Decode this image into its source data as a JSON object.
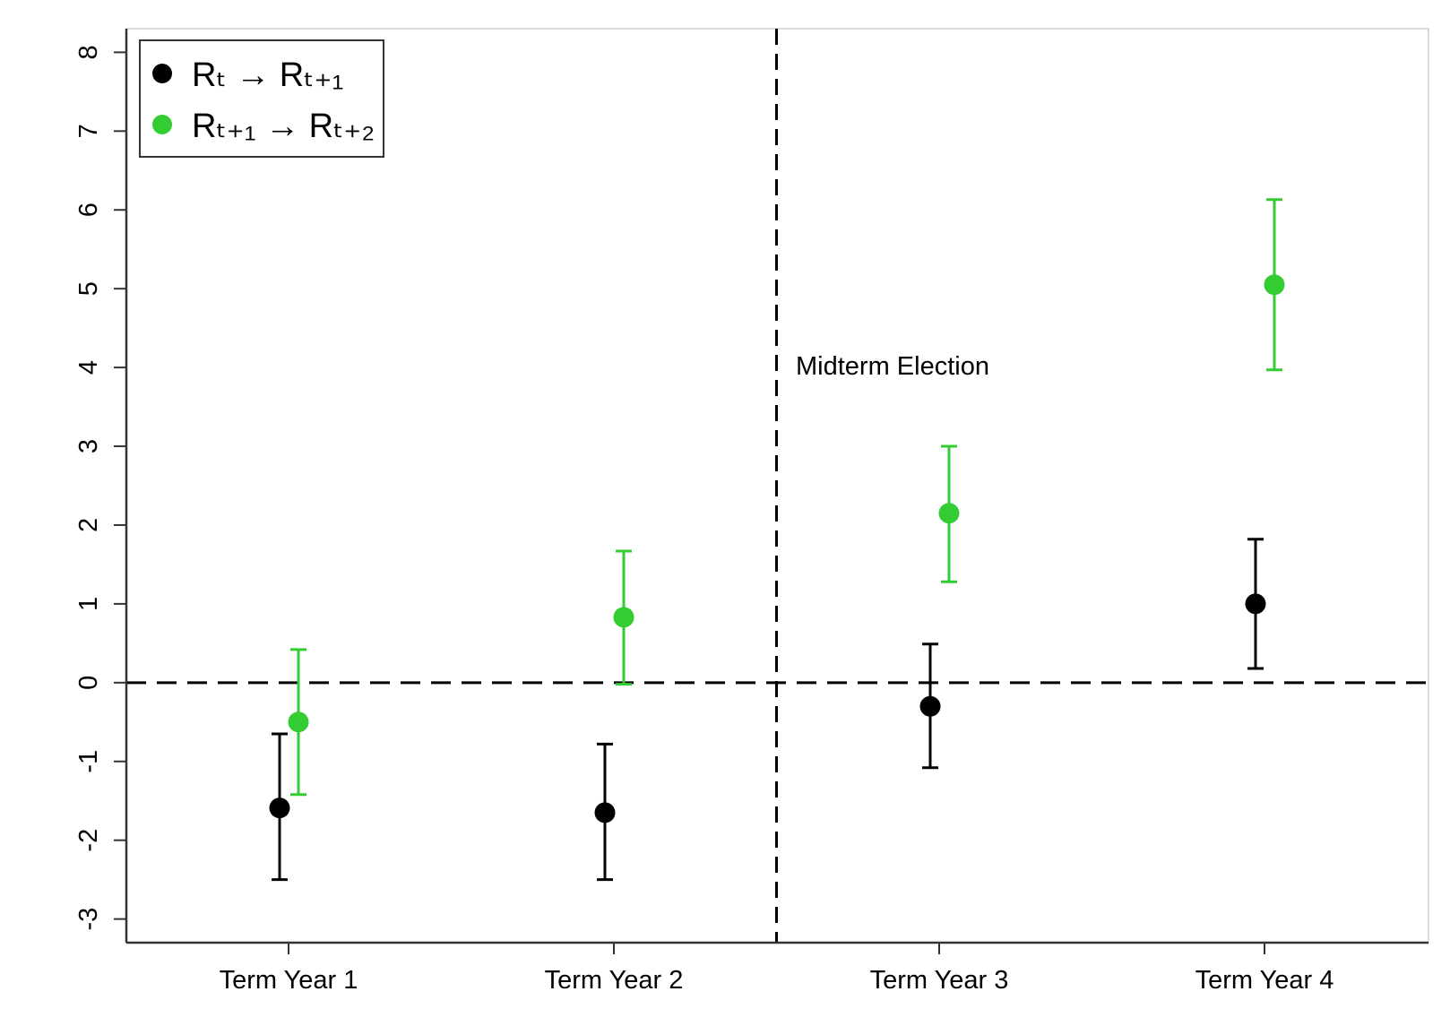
{
  "chart_data": {
    "type": "scatter",
    "categories": [
      "Term Year 1",
      "Term Year 2",
      "Term Year 3",
      "Term Year 4"
    ],
    "ylim": [
      -3.3,
      8.3
    ],
    "yticks": [
      "-3",
      "-2",
      "-1",
      "0",
      "1",
      "2",
      "3",
      "4",
      "5",
      "6",
      "7",
      "8"
    ],
    "grid": false,
    "legend_position": "top-left",
    "reference_lines": {
      "horizontal_y": 0,
      "vertical_between": [
        "Term Year 2",
        "Term Year 3"
      ]
    },
    "annotation": "Midterm Election",
    "series": [
      {
        "name": "Rₜ → Rₜ₊₁",
        "color": "#000000",
        "values": [
          -1.59,
          -1.65,
          -0.3,
          1.0
        ],
        "lower": [
          -2.5,
          -2.5,
          -1.08,
          0.18
        ],
        "upper": [
          -0.65,
          -0.78,
          0.49,
          1.82
        ]
      },
      {
        "name": "Rₜ₊₁ → Rₜ₊₂",
        "color": "#33cc33",
        "values": [
          -0.5,
          0.83,
          2.15,
          5.05
        ],
        "lower": [
          -1.42,
          -0.02,
          1.28,
          3.97
        ],
        "upper": [
          0.42,
          1.67,
          3.0,
          6.13
        ]
      }
    ]
  }
}
